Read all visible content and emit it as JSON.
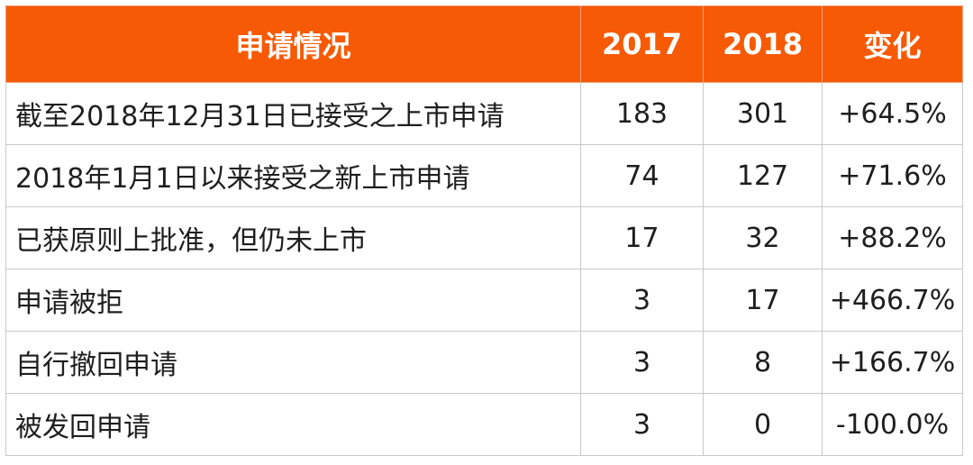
{
  "chart_data": {
    "type": "table",
    "columns": [
      "申请情况",
      "2017",
      "2018",
      "变化"
    ],
    "rows": [
      {
        "label": "截至2018年12月31日已接受之上市申请",
        "y2017": "183",
        "y2018": "301",
        "change": "+64.5%"
      },
      {
        "label": "2018年1月1日以来接受之新上市申请",
        "y2017": "74",
        "y2018": "127",
        "change": "+71.6%"
      },
      {
        "label": "已获原则上批准，但仍未上市",
        "y2017": "17",
        "y2018": "32",
        "change": "+88.2%"
      },
      {
        "label": "申请被拒",
        "y2017": "3",
        "y2018": "17",
        "change": "+466.7%"
      },
      {
        "label": "自行撤回申请",
        "y2017": "3",
        "y2018": "8",
        "change": "+166.7%"
      },
      {
        "label": "被发回申请",
        "y2017": "3",
        "y2018": "0",
        "change": "-100.0%"
      }
    ]
  },
  "colors": {
    "header_bg": "#f75a05",
    "header_text": "#ffffff",
    "border": "#c9c9c9",
    "text": "#1e1e1e"
  }
}
